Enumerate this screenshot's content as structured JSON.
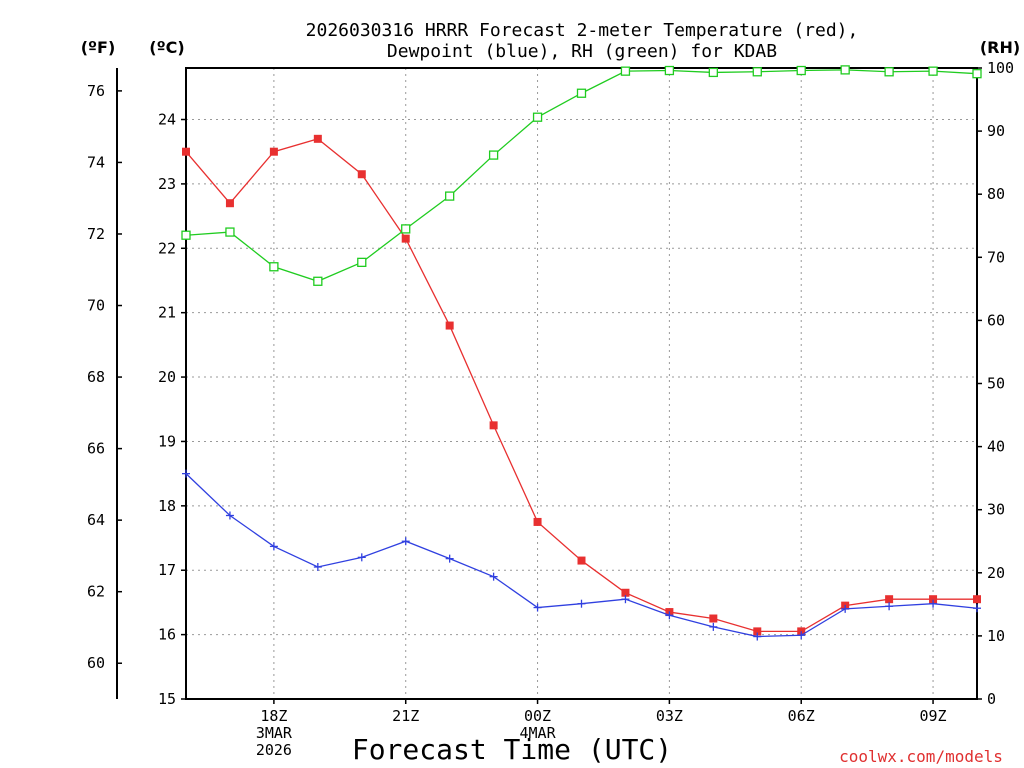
{
  "chart_data": {
    "type": "line",
    "title_lines": [
      "2026030316 HRRR Forecast 2-meter Temperature (red),",
      "Dewpoint (blue), RH (green) for KDAB"
    ],
    "xlabel": "Forecast Time (UTC)",
    "credit": "coolwx.com/models",
    "unit_labels": {
      "fahrenheit": "(ºF)",
      "celsius": "(ºC)",
      "rh": "(RH)"
    },
    "x_hours": [
      0,
      1,
      2,
      3,
      4,
      5,
      6,
      7,
      8,
      9,
      10,
      11,
      12,
      13,
      14,
      15,
      16,
      17,
      18
    ],
    "x_range": [
      0,
      18
    ],
    "x_ticks": [
      {
        "hour": 2,
        "lines": [
          "18Z",
          "3MAR",
          "2026"
        ]
      },
      {
        "hour": 5,
        "lines": [
          "21Z"
        ]
      },
      {
        "hour": 8,
        "lines": [
          "00Z",
          "4MAR"
        ]
      },
      {
        "hour": 11,
        "lines": [
          "03Z"
        ]
      },
      {
        "hour": 14,
        "lines": [
          "06Z"
        ]
      },
      {
        "hour": 17,
        "lines": [
          "09Z"
        ]
      }
    ],
    "celsius_axis": {
      "range": [
        15,
        24.8
      ],
      "ticks": [
        15,
        16,
        17,
        18,
        19,
        20,
        21,
        22,
        23,
        24
      ]
    },
    "fahrenheit_axis": {
      "ticks": [
        60,
        62,
        64,
        66,
        68,
        70,
        72,
        74,
        76
      ]
    },
    "rh_axis": {
      "range": [
        0,
        100
      ],
      "ticks": [
        0,
        10,
        20,
        30,
        40,
        50,
        60,
        70,
        80,
        90,
        100
      ]
    },
    "series": [
      {
        "name": "Temperature",
        "axis": "celsius",
        "color": "#e83030",
        "marker": "filled-square",
        "values": [
          23.5,
          22.7,
          23.5,
          23.7,
          23.15,
          22.15,
          20.8,
          19.25,
          17.75,
          17.15,
          16.65,
          16.35,
          16.25,
          16.05,
          16.05,
          16.45,
          16.55,
          16.55,
          16.55
        ]
      },
      {
        "name": "Dewpoint",
        "axis": "celsius",
        "color": "#3040e0",
        "marker": "plus",
        "values": [
          18.5,
          17.85,
          17.37,
          17.05,
          17.2,
          17.45,
          17.18,
          16.9,
          16.42,
          16.48,
          16.55,
          16.3,
          16.12,
          15.97,
          15.99,
          16.4,
          16.44,
          16.48,
          16.41
        ]
      },
      {
        "name": "RH",
        "axis": "rh",
        "color": "#20cc20",
        "marker": "open-square",
        "values": [
          73.5,
          74,
          68.5,
          66.2,
          69.2,
          74.5,
          79.7,
          86.2,
          92.2,
          96,
          99.5,
          99.6,
          99.3,
          99.4,
          99.6,
          99.7,
          99.4,
          99.5,
          99.1
        ]
      }
    ]
  }
}
